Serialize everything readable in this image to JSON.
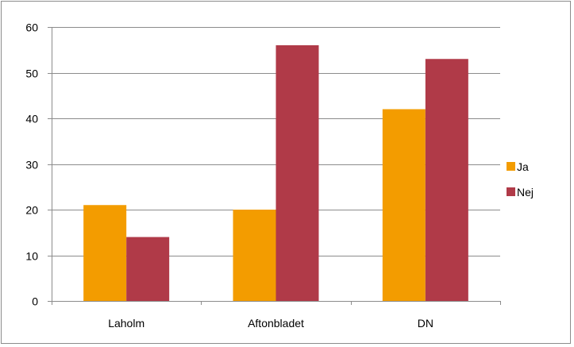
{
  "chart_data": {
    "type": "bar",
    "title": "",
    "xlabel": "",
    "ylabel": "",
    "categories": [
      "Laholm",
      "Aftonbladet",
      "DN"
    ],
    "series": [
      {
        "name": "Ja",
        "color": "#F39C00",
        "values": [
          21,
          20,
          42
        ]
      },
      {
        "name": "Nej",
        "color": "#B03A48",
        "values": [
          14,
          56,
          53
        ]
      }
    ],
    "ylim": [
      0,
      60
    ],
    "yticks": [
      0,
      10,
      20,
      30,
      40,
      50,
      60
    ],
    "grid": true,
    "legend": "right"
  }
}
